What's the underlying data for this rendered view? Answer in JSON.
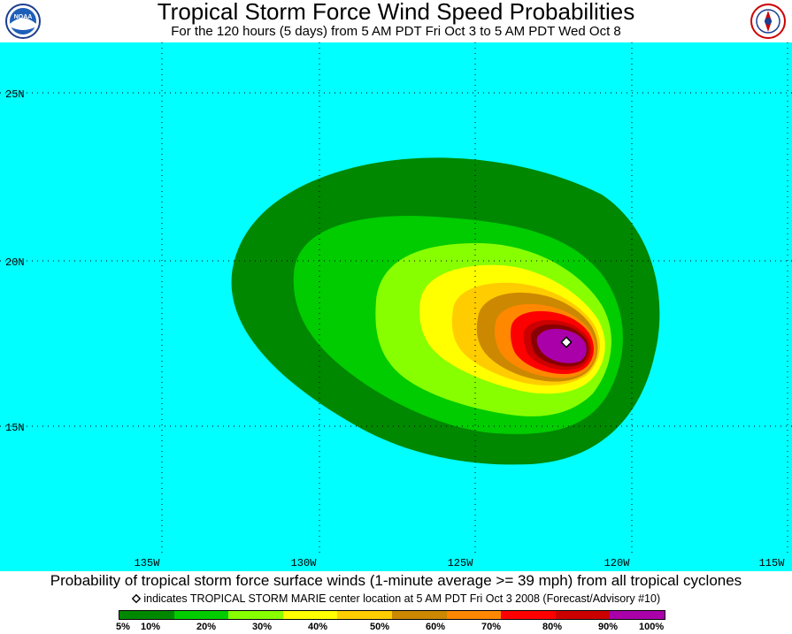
{
  "header": {
    "title": "Tropical Storm Force Wind Speed Probabilities",
    "subtitle": "For the 120 hours (5 days) from 5 AM PDT Fri Oct 3 to 5 AM PDT Wed Oct 8"
  },
  "logos": {
    "left": "noaa-logo",
    "right": "national-weather-service-logo",
    "left_text": "NOAA"
  },
  "map": {
    "background_color": "#00ffff",
    "lat_labels": [
      "25N",
      "20N",
      "15N"
    ],
    "lon_labels": [
      "135W",
      "130W",
      "125W",
      "120W",
      "115W"
    ],
    "storm_center_icon": "diamond-icon"
  },
  "footer": {
    "main": "Probability of tropical storm force surface winds (1-minute average >= 39 mph) from all tropical cyclones",
    "note": "indicates TROPICAL STORM MARIE center location at 5 AM PDT Fri Oct 3 2008 (Forecast/Advisory #10)"
  },
  "legend": {
    "colors": [
      "#008800",
      "#00cc00",
      "#88ff00",
      "#ffff00",
      "#ffcc00",
      "#cc8800",
      "#ff8800",
      "#ff0000",
      "#cc0000",
      "#880000",
      "#aa00aa"
    ],
    "labels": [
      "5%",
      "10%",
      "20%",
      "30%",
      "40%",
      "50%",
      "60%",
      "70%",
      "80%",
      "90%",
      "100%"
    ]
  }
}
